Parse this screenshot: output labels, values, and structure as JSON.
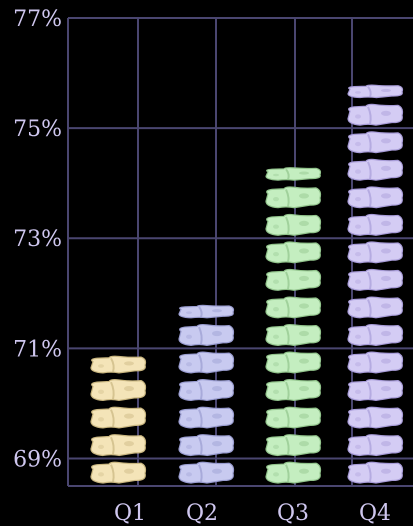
{
  "chart_data": {
    "type": "bar",
    "style": "pictograph",
    "icon": "cheese-block-icon",
    "categories": [
      "Q1",
      "Q2",
      "Q3",
      "Q4"
    ],
    "values": [
      70.9,
      71.6,
      74.1,
      75.8
    ],
    "ylim": [
      68.5,
      77
    ],
    "yticks": [
      69,
      71,
      73,
      75,
      77
    ],
    "ytick_labels": [
      "69%",
      "71%",
      "73%",
      "75%",
      "77%"
    ],
    "title": "",
    "xlabel": "",
    "ylabel": "",
    "grid": true,
    "colors": [
      "#f4e4b8",
      "#c8caf0",
      "#c4eec0",
      "#d4ccf4"
    ],
    "colors_dark": [
      "#c9b680",
      "#9a9dd0",
      "#92c48c",
      "#a89cd8"
    ],
    "grid_color": "#4a4670",
    "label_color": "#cfc7ef"
  }
}
